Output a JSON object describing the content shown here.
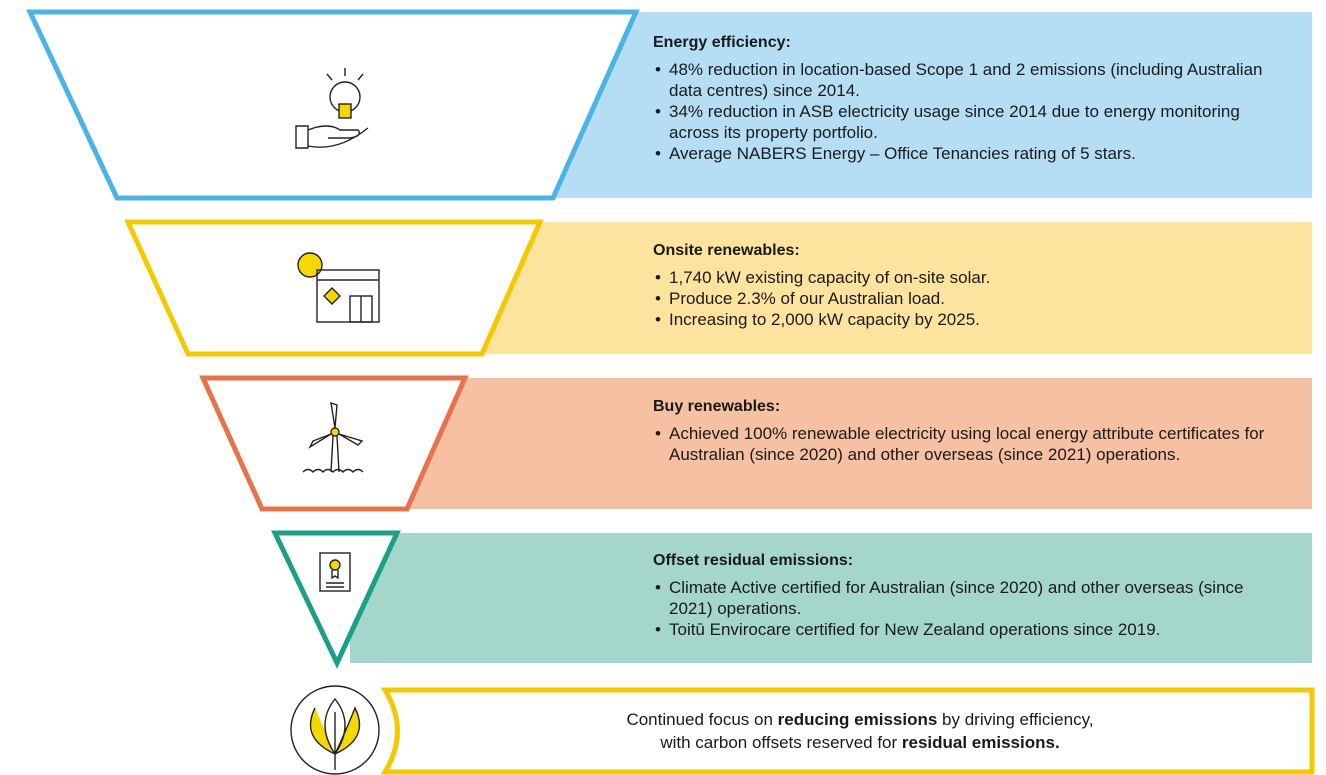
{
  "tiers": [
    {
      "heading": "Energy efficiency:",
      "bullets": [
        "48% reduction in location-based Scope 1 and 2 emissions (including Australian data centres) since 2014.",
        "34% reduction in ASB electricity usage since 2014 due to energy monitoring across its property portfolio.",
        "Average NABERS Energy – Office Tenancies rating of 5 stars."
      ]
    },
    {
      "heading": "Onsite renewables:",
      "bullets": [
        "1,740 kW existing capacity of on-site solar.",
        "Produce 2.3% of our Australian load.",
        "Increasing to 2,000 kW capacity by 2025."
      ]
    },
    {
      "heading": "Buy renewables:",
      "bullets": [
        "Achieved 100% renewable electricity using local energy attribute certificates for Australian (since 2020) and other overseas (since 2021) operations."
      ]
    },
    {
      "heading": "Offset residual emissions:",
      "bullets": [
        "Climate Active certified for Australian (since 2020) and other overseas (since 2021) operations.",
        "Toitū Envirocare certified for New Zealand operations since 2019."
      ]
    }
  ],
  "footer": {
    "lines": [
      [
        "Continued focus on ",
        "reducing emissions",
        " by driving efficiency,"
      ],
      [
        "with carbon offsets reserved for ",
        "residual emissions."
      ]
    ]
  }
}
